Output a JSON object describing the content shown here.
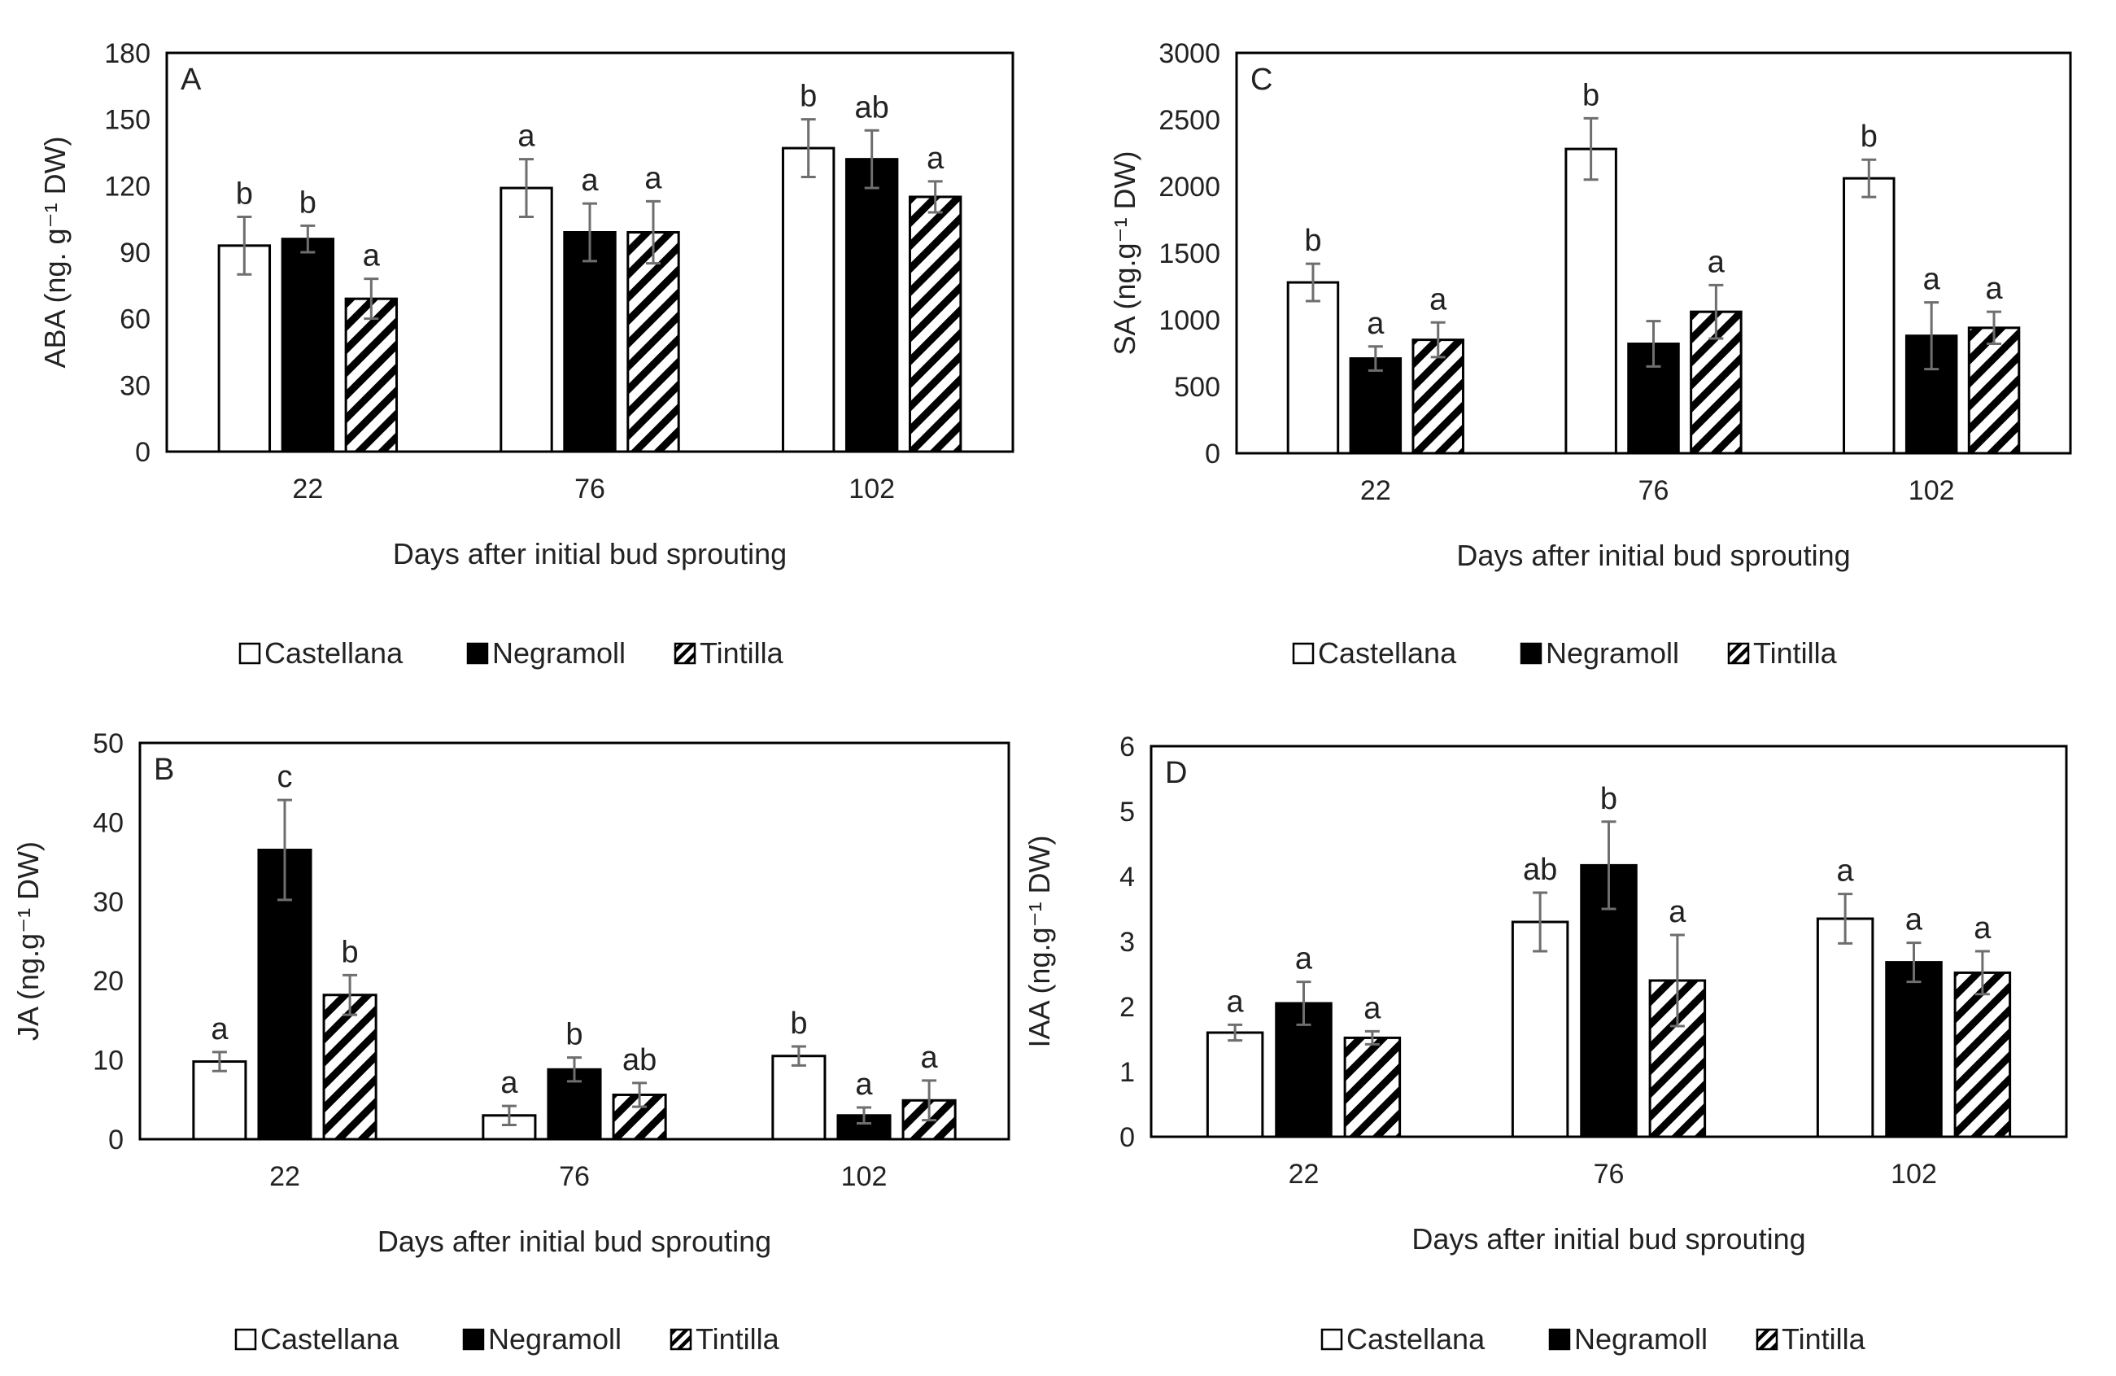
{
  "figure_description_units": "ng·g-1 DW",
  "legend_items": [
    "Castellana",
    "Negramoll",
    "Tintilla"
  ],
  "chart_data": [
    {
      "panel": "A",
      "type": "bar",
      "ylabel": "ABA (ng. g⁻¹ DW)",
      "xlabel": "Days after initial bud sprouting",
      "categories": [
        "22",
        "76",
        "102"
      ],
      "ylim": [
        0,
        180
      ],
      "yticks": [
        0,
        30,
        60,
        90,
        120,
        150,
        180
      ],
      "grid": false,
      "legend": "bottom",
      "series": [
        {
          "name": "Castellana",
          "values": [
            93,
            119,
            137
          ],
          "errors": [
            13,
            13,
            13
          ],
          "letters": [
            "b",
            "a",
            "b"
          ]
        },
        {
          "name": "Negramoll",
          "values": [
            96,
            99,
            132
          ],
          "errors": [
            6,
            13,
            13
          ],
          "letters": [
            "b",
            "a",
            "ab"
          ]
        },
        {
          "name": "Tintilla",
          "values": [
            69,
            99,
            115
          ],
          "errors": [
            9,
            14,
            7
          ],
          "letters": [
            "a",
            "a",
            "a"
          ]
        }
      ]
    },
    {
      "panel": "C",
      "type": "bar",
      "ylabel": "SA (ng.g⁻¹ DW)",
      "xlabel": "Days after initial bud sprouting",
      "categories": [
        "22",
        "76",
        "102"
      ],
      "ylim": [
        0,
        3000
      ],
      "yticks": [
        0,
        500,
        1000,
        1500,
        2000,
        2500,
        3000
      ],
      "grid": false,
      "legend": "bottom",
      "series": [
        {
          "name": "Castellana",
          "values": [
            1280,
            2280,
            2060
          ],
          "errors": [
            140,
            230,
            140
          ],
          "letters": [
            "b",
            "b",
            "b"
          ]
        },
        {
          "name": "Negramoll",
          "values": [
            710,
            820,
            880
          ],
          "errors": [
            90,
            170,
            250
          ],
          "letters": [
            "a",
            "",
            "a"
          ]
        },
        {
          "name": "Tintilla",
          "values": [
            850,
            1060,
            940
          ],
          "errors": [
            130,
            200,
            120
          ],
          "letters": [
            "a",
            "a",
            "a"
          ]
        }
      ]
    },
    {
      "panel": "B",
      "type": "bar",
      "ylabel": "JA (ng.g⁻¹ DW)",
      "xlabel": "Days after initial bud sprouting",
      "categories": [
        "22",
        "76",
        "102"
      ],
      "ylim": [
        0,
        50
      ],
      "yticks": [
        0,
        10,
        20,
        30,
        40,
        50
      ],
      "grid": false,
      "legend": "bottom",
      "series": [
        {
          "name": "Castellana",
          "values": [
            9.8,
            3.0,
            10.5
          ],
          "errors": [
            1.2,
            1.2,
            1.2
          ],
          "letters": [
            "a",
            "a",
            "b"
          ]
        },
        {
          "name": "Negramoll",
          "values": [
            36.5,
            8.8,
            3.0
          ],
          "errors": [
            6.3,
            1.5,
            1.0
          ],
          "letters": [
            "c",
            "b",
            "a"
          ]
        },
        {
          "name": "Tintilla",
          "values": [
            18.2,
            5.6,
            4.9
          ],
          "errors": [
            2.5,
            1.5,
            2.5
          ],
          "letters": [
            "b",
            "ab",
            "a"
          ]
        }
      ]
    },
    {
      "panel": "D",
      "type": "bar",
      "ylabel": "IAA (ng.g⁻¹ DW)",
      "xlabel": "Days after initial bud sprouting",
      "categories": [
        "22",
        "76",
        "102"
      ],
      "ylim": [
        0,
        6
      ],
      "yticks": [
        0,
        1,
        2,
        3,
        4,
        5,
        6
      ],
      "grid": false,
      "legend": "bottom",
      "series": [
        {
          "name": "Castellana",
          "values": [
            1.6,
            3.3,
            3.35
          ],
          "errors": [
            0.12,
            0.45,
            0.38
          ],
          "letters": [
            "a",
            "ab",
            "a"
          ]
        },
        {
          "name": "Negramoll",
          "values": [
            2.05,
            4.17,
            2.68
          ],
          "errors": [
            0.33,
            0.67,
            0.3
          ],
          "letters": [
            "a",
            "b",
            "a"
          ]
        },
        {
          "name": "Tintilla",
          "values": [
            1.52,
            2.4,
            2.52
          ],
          "errors": [
            0.1,
            0.7,
            0.33
          ],
          "letters": [
            "a",
            "a",
            "a"
          ]
        }
      ]
    }
  ]
}
